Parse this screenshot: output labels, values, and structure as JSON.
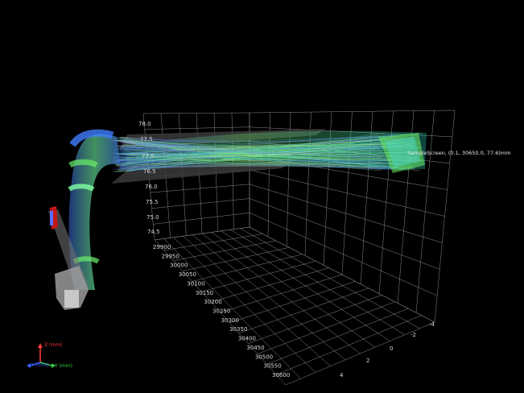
{
  "scene": {
    "background": "#000000",
    "grid_color": "#8a8a8a",
    "beam_colors": [
      "#3f7dff",
      "#6cf06a",
      "#9b6cff",
      "#2fd4c8",
      "#d8ff7a"
    ],
    "screen_color": "#3a3a3a"
  },
  "screen_label": "SampleScreen, (0.1, 30650.0, 77.6)mm",
  "z_ticks": [
    "78.0",
    "77.5",
    "77.0",
    "76.5",
    "76.0",
    "75.5",
    "75.0",
    "74.5"
  ],
  "y_ticks": [
    "29900",
    "29950",
    "30000",
    "30050",
    "30100",
    "30150",
    "30200",
    "30250",
    "30300",
    "30350",
    "30400",
    "30450",
    "30500",
    "30550",
    "30600"
  ],
  "x_ticks": [
    "-4",
    "-2",
    "0",
    "2",
    "4"
  ],
  "triad": {
    "z_label": "Z (mm)",
    "x_label": "X (mm)",
    "y_label": "Y (mm)",
    "z_color": "#ff3a3a",
    "x_color": "#3a5cff",
    "y_color": "#3ad04a"
  }
}
